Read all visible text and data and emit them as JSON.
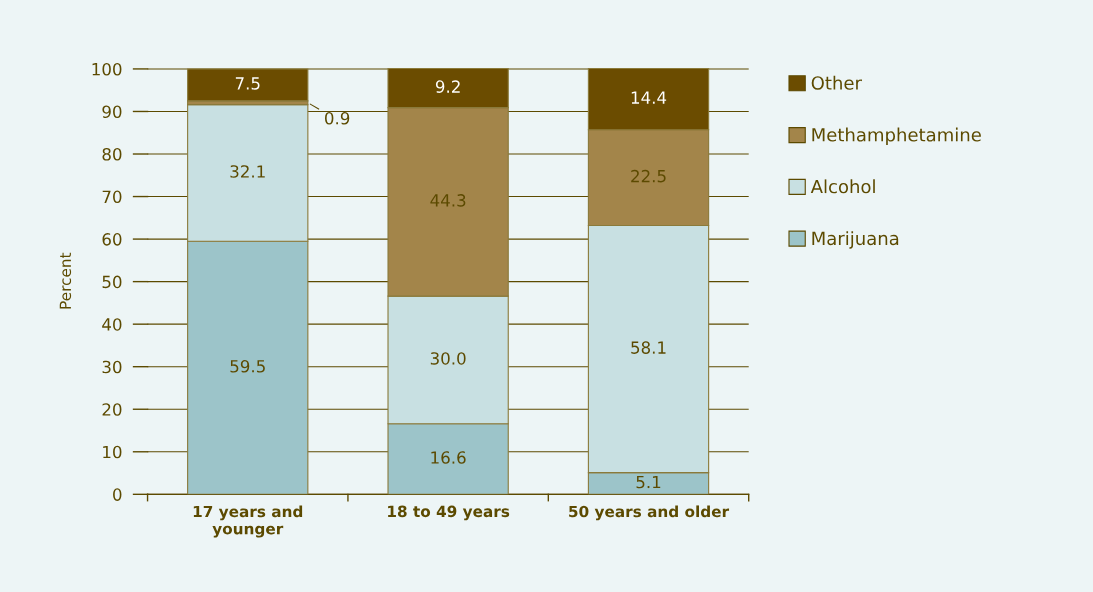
{
  "chart_data": {
    "type": "bar",
    "stacked": true,
    "ylabel": "Percent",
    "categories": [
      "17 years and\nyounger",
      "18 to 49 years",
      "50 years and older"
    ],
    "series": [
      {
        "name": "Marijuana",
        "color": "#9cc4c9",
        "values": [
          59.5,
          16.6,
          5.1
        ],
        "value_labels": [
          "59.5",
          "16.6",
          "5.1"
        ]
      },
      {
        "name": "Alcohol",
        "color": "#c8e0e2",
        "values": [
          32.1,
          30.0,
          58.1
        ],
        "value_labels": [
          "32.1",
          "30.0",
          "58.1"
        ]
      },
      {
        "name": "Methamphetamine",
        "color": "#a3854a",
        "values": [
          0.9,
          44.3,
          22.5
        ],
        "value_labels": [
          "0.9",
          "44.3",
          "22.5"
        ]
      },
      {
        "name": "Other",
        "color": "#6b4c00",
        "values": [
          7.5,
          9.2,
          14.4
        ],
        "value_labels": [
          "7.5",
          "9.2",
          "14.4"
        ]
      }
    ],
    "ylim": [
      0,
      100.2
    ],
    "yticks": [
      0,
      10,
      20,
      30,
      40,
      50,
      60,
      70,
      80,
      90,
      100
    ],
    "grid": "y",
    "legend": "right"
  }
}
